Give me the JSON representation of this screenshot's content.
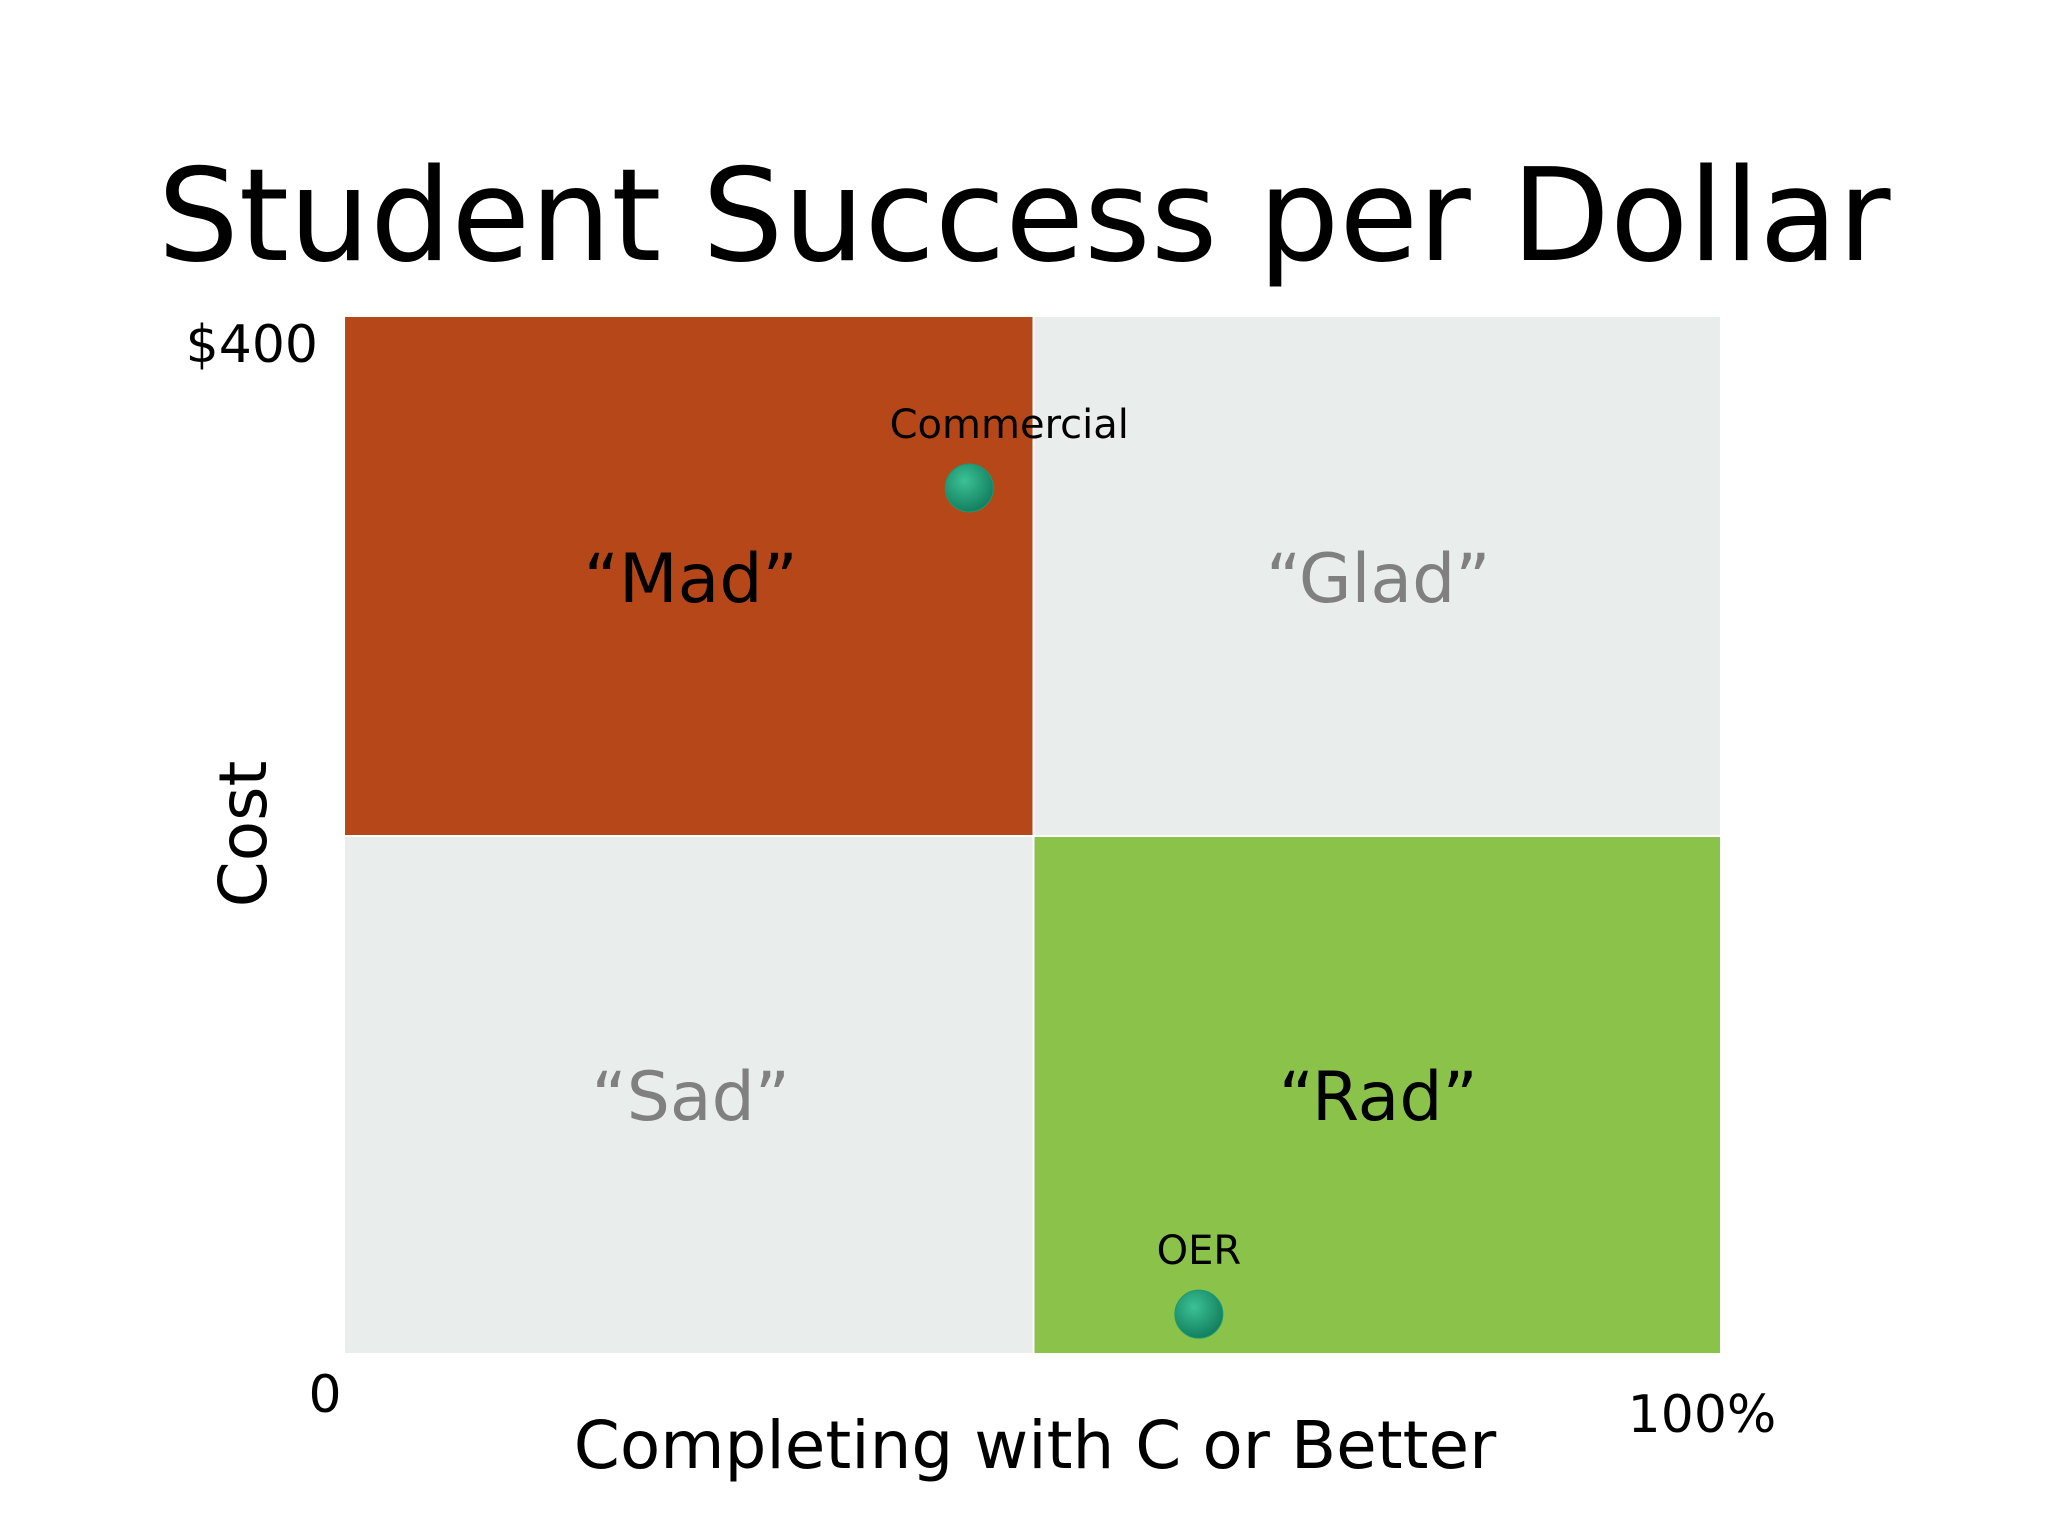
{
  "chart_data": {
    "type": "scatter",
    "title": "Student Success per Dollar",
    "xlabel": "Completing with C or Better",
    "ylabel": "Cost",
    "x_tick_labels": {
      "min": "0",
      "max": "100%"
    },
    "y_tick_labels": {
      "max": "$400"
    },
    "xlim": [
      0,
      100
    ],
    "ylim": [
      0,
      400
    ],
    "grid": false,
    "quadrants": [
      {
        "label": "“Mad”",
        "x_range": [
          0,
          50
        ],
        "y_range": [
          200,
          400
        ],
        "color": "#b64718",
        "text_color": "#000000"
      },
      {
        "label": "“Glad”",
        "x_range": [
          50,
          100
        ],
        "y_range": [
          200,
          400
        ],
        "color": "#e9edeb",
        "text_color": "#808080"
      },
      {
        "label": "“Sad”",
        "x_range": [
          0,
          50
        ],
        "y_range": [
          0,
          200
        ],
        "color": "#e9edeb",
        "text_color": "#808080"
      },
      {
        "label": "“Rad”",
        "x_range": [
          50,
          100
        ],
        "y_range": [
          0,
          200
        ],
        "color": "#8bc34a",
        "text_color": "#000000"
      }
    ],
    "points": [
      {
        "label": "Commercial",
        "x": 45.4,
        "y": 334,
        "color": "#1b9a73"
      },
      {
        "label": "OER",
        "x": 62.1,
        "y": 15,
        "color": "#1b9a73"
      }
    ]
  }
}
